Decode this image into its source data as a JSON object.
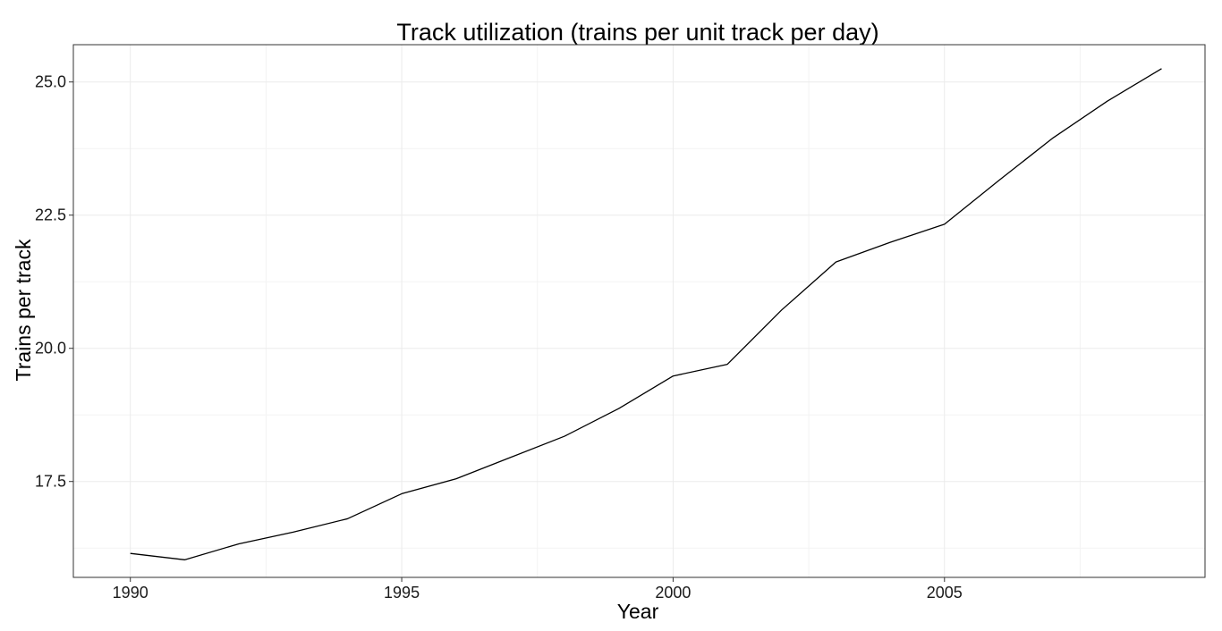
{
  "chart_data": {
    "type": "line",
    "title": "Track utilization (trains per unit track per day)",
    "xlabel": "Year",
    "ylabel": "Trains per track",
    "x": [
      1990,
      1991,
      1992,
      1993,
      1994,
      1995,
      1996,
      1997,
      1998,
      1999,
      2000,
      2001,
      2002,
      2003,
      2004,
      2005,
      2006,
      2007,
      2008,
      2009
    ],
    "series": [
      {
        "values": [
          16.15,
          16.03,
          16.33,
          16.55,
          16.8,
          17.27,
          17.55,
          17.95,
          18.35,
          18.87,
          19.48,
          19.7,
          20.72,
          21.62,
          21.99,
          22.33,
          23.15,
          23.95,
          24.64,
          25.25
        ]
      }
    ],
    "xlim": [
      1988.95,
      2009.8
    ],
    "ylim": [
      15.7,
      25.7
    ],
    "x_ticks": [
      1990,
      1995,
      2000,
      2005
    ],
    "x_tick_labels": [
      "1990",
      "1995",
      "2000",
      "2005"
    ],
    "y_ticks": [
      17.5,
      20.0,
      22.5,
      25.0
    ],
    "y_tick_labels": [
      "17.5",
      "20.0",
      "22.5",
      "25.0"
    ],
    "grid": true,
    "legend": "none",
    "line_color": "#000000",
    "grid_color": "#ebebeb",
    "panel_border_color": "#333333"
  }
}
